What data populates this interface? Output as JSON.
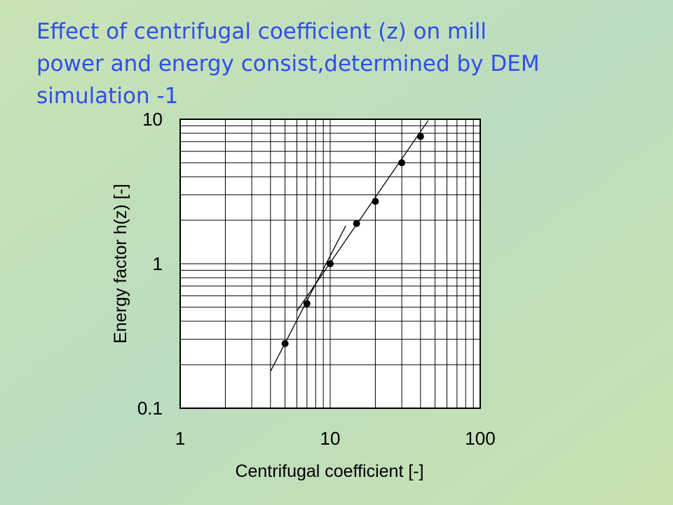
{
  "chart_data": {
    "type": "scatter",
    "title": [
      "Effect of centrifugal coefficient (z) on mill",
      "power and energy consist,determined by DEM",
      "simulation -1"
    ],
    "x_label": "Centrifugal coefficient [-]",
    "y_label": "Energy factor  h(z)  [-]",
    "log_x": true,
    "log_y": true,
    "grid": true,
    "xlim": [
      1,
      100
    ],
    "ylim": [
      0.1,
      10
    ],
    "xticks": [
      1,
      10,
      100
    ],
    "yticks": [
      0.1,
      1,
      10
    ],
    "x": [
      5,
      7,
      10,
      15,
      20,
      30,
      40
    ],
    "values": [
      0.28,
      0.53,
      1.0,
      1.9,
      2.7,
      5,
      7.6
    ],
    "color": "#000000",
    "fit_lines": [
      {
        "x": [
          4,
          12.7
        ],
        "values": [
          0.18,
          1.83
        ]
      },
      {
        "x": [
          6,
          45
        ],
        "values": [
          0.47,
          9.8
        ]
      }
    ]
  }
}
